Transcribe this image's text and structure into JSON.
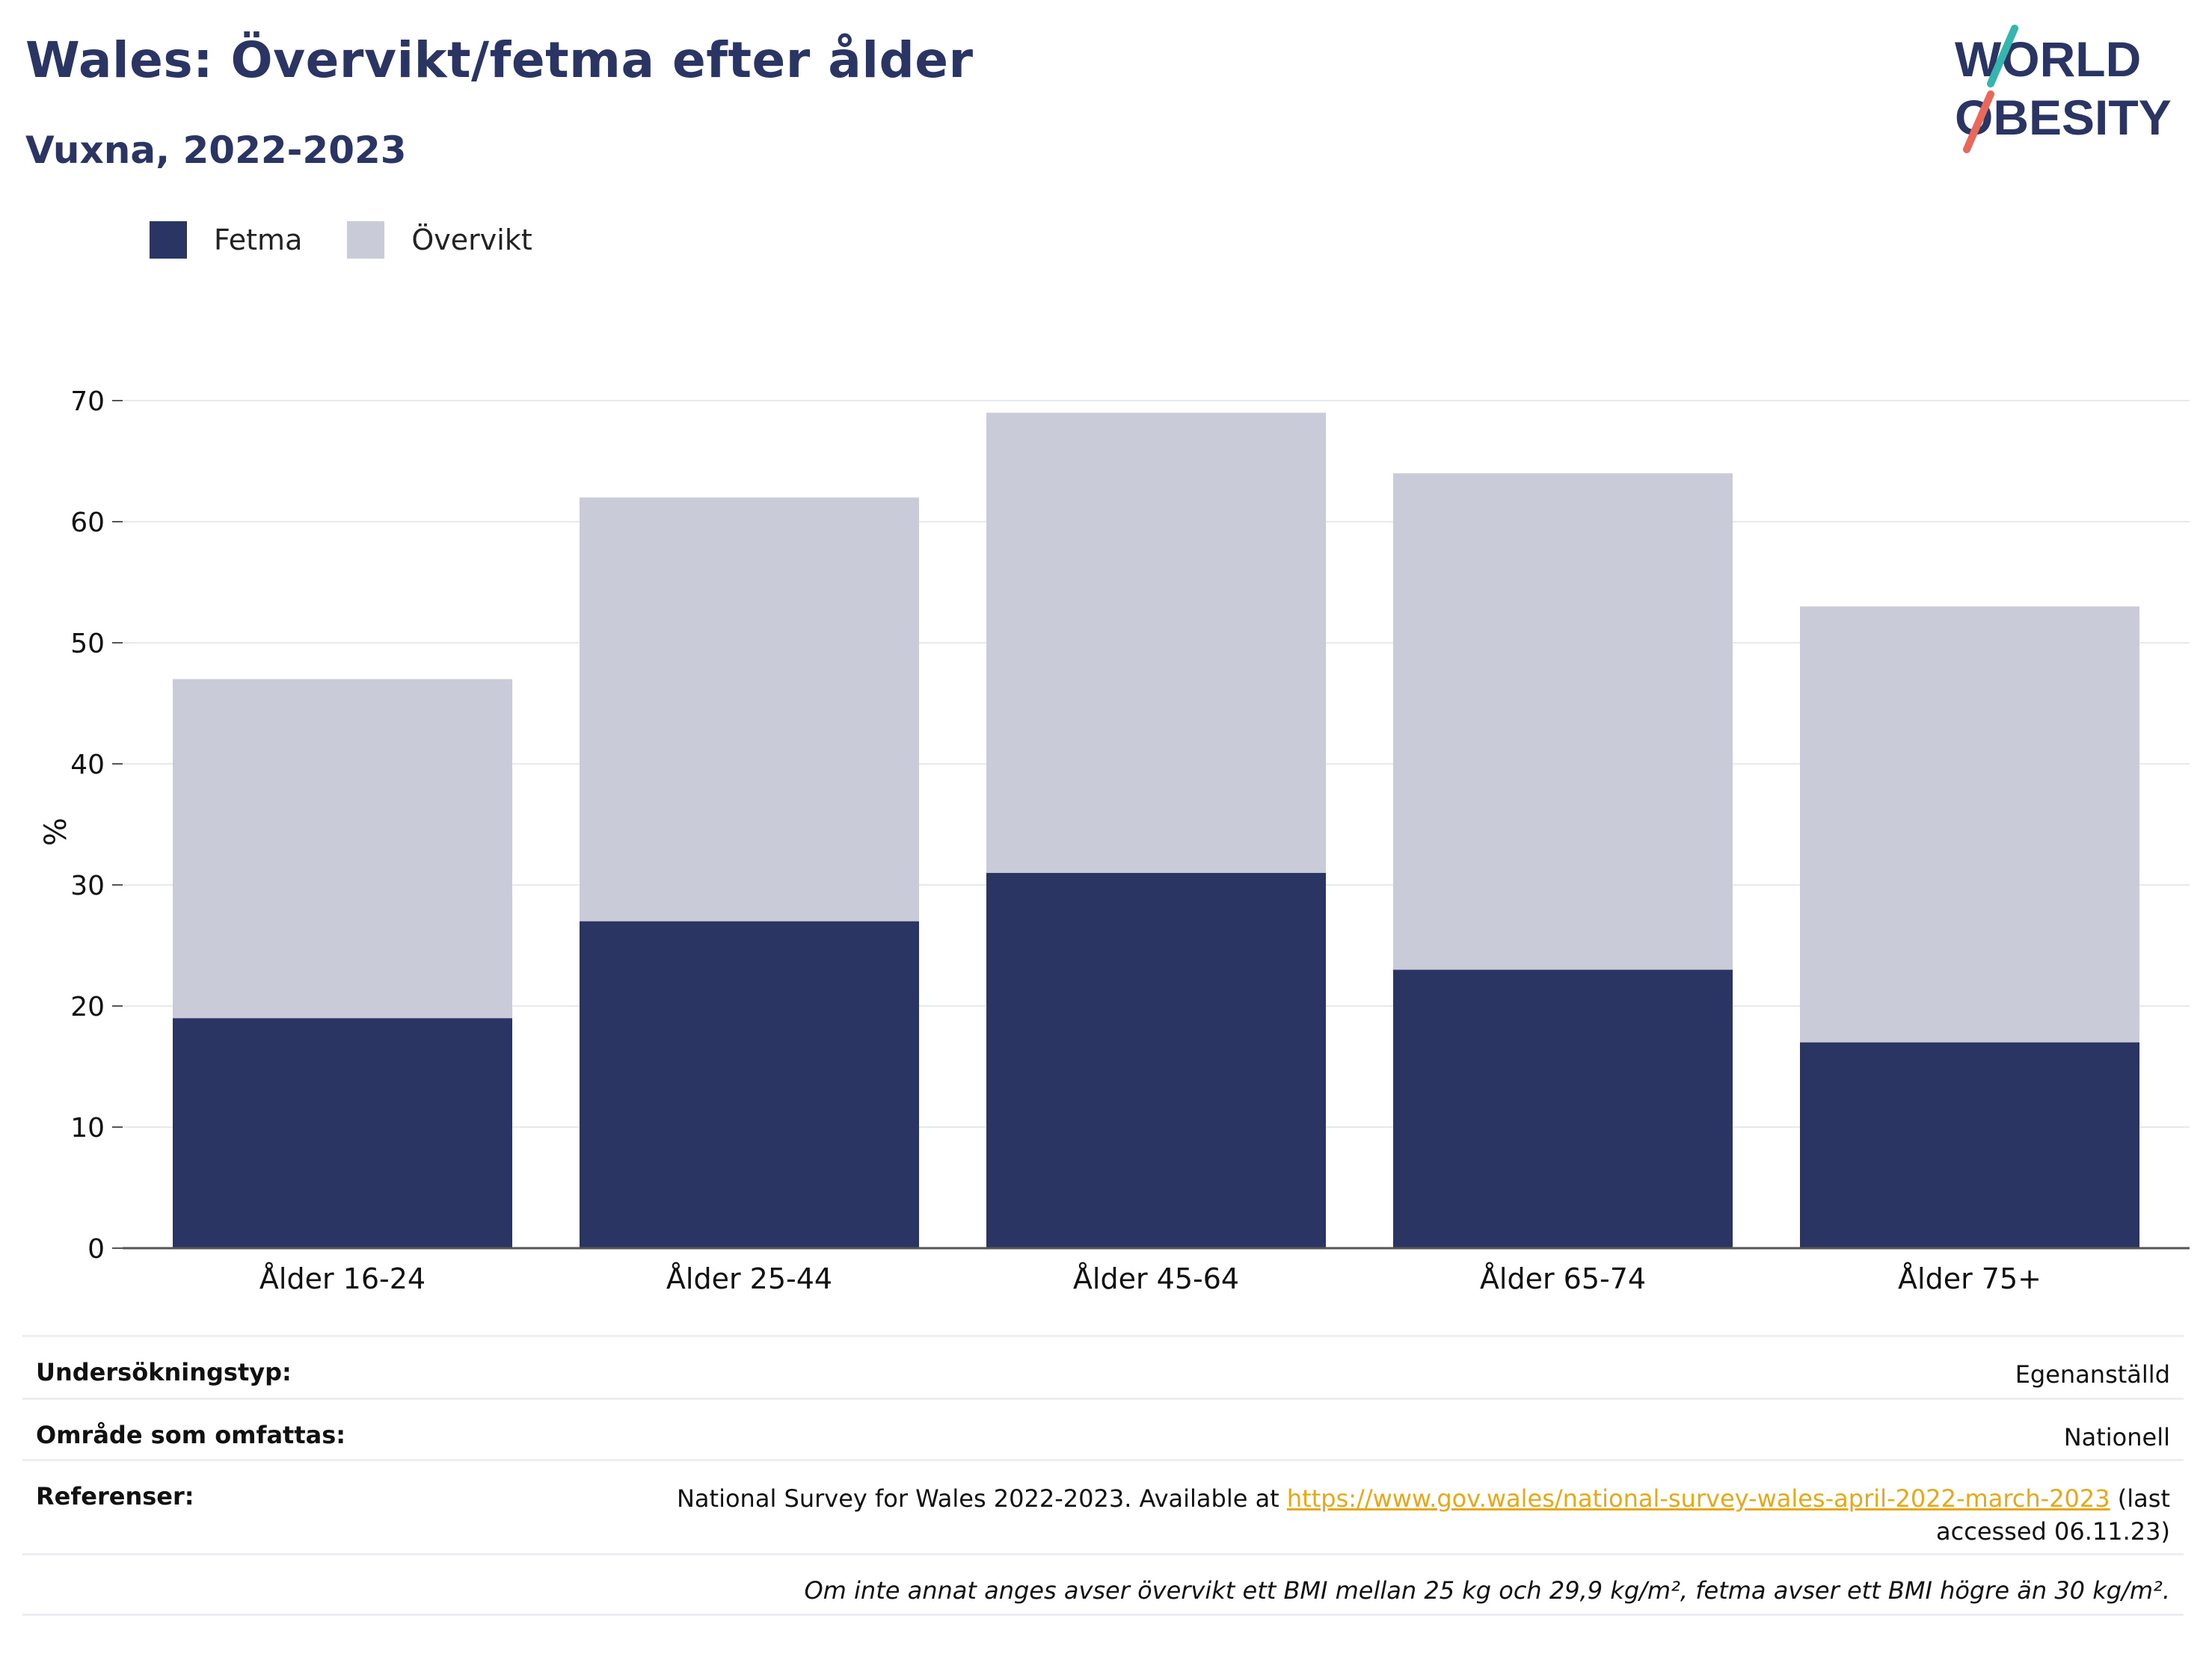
{
  "header": {
    "title": "Wales: Övervikt/fetma efter ålder",
    "subtitle": "Vuxna, 2022-2023"
  },
  "logo": {
    "line1": "WORLD",
    "line2": "OBESITY"
  },
  "colors": {
    "obesity": "#2a3563",
    "overweight": "#c9ccd8",
    "title": "#2a3563",
    "link": "#e6a817",
    "grid": "#e8e9ee"
  },
  "chart_data": {
    "type": "bar",
    "stacked": true,
    "categories": [
      "Ålder 16-24",
      "Ålder 25-44",
      "Ålder 45-64",
      "Ålder 65-74",
      "Ålder 75+"
    ],
    "series": [
      {
        "name": "Fetma",
        "values": [
          19,
          27,
          31,
          23,
          17
        ]
      },
      {
        "name": "Övervikt",
        "values": [
          28,
          35,
          38,
          41,
          36
        ]
      }
    ],
    "ylabel": "%",
    "ylim": [
      0,
      70
    ],
    "yticks": [
      0,
      10,
      20,
      30,
      40,
      50,
      60,
      70
    ],
    "grid": true,
    "legend_position": "top-left"
  },
  "info": {
    "survey_type_label": "Undersökningstyp:",
    "survey_type_value": "Egenanställd",
    "area_label": "Område som omfattas:",
    "area_value": "Nationell",
    "references_label": "Referenser:",
    "references_text_before": "National Survey for Wales 2022-2023. Available at ",
    "references_link": "https://www.gov.wales/national-survey-wales-april-2022-march-2023",
    "references_text_after_1": " (last",
    "references_text_after_2": "accessed 06.11.23)",
    "note": "Om inte annat anges avser övervikt ett BMI mellan 25 kg och 29,9 kg/m², fetma avser ett BMI högre än 30 kg/m²."
  }
}
